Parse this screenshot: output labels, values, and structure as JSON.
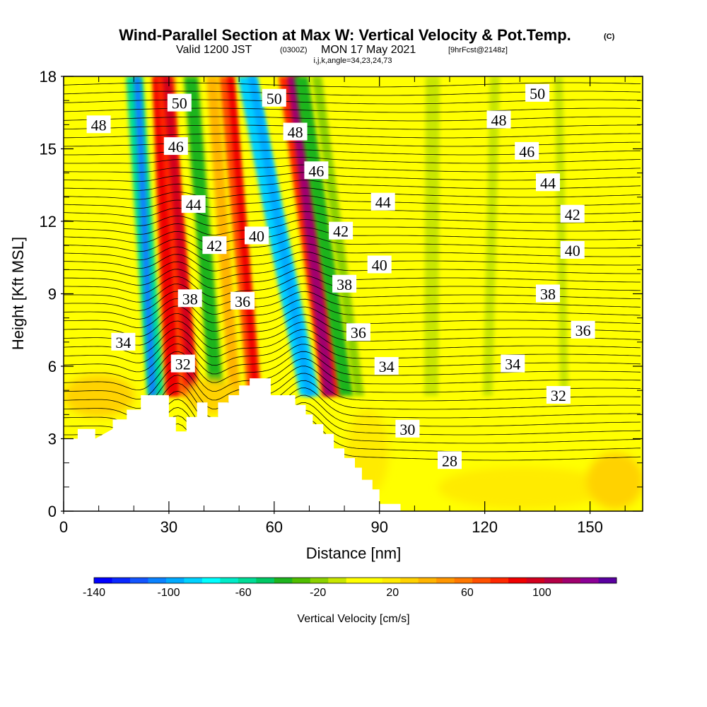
{
  "header": {
    "title": "Wind-Parallel Section at Max W: Vertical Velocity & Pot.Temp.",
    "title_mark": "(C)",
    "sub_a": "Valid 1200 JST",
    "sub_b": "(0300Z)",
    "sub_c": "MON 17 May 2021",
    "sub_d": "[9hrFcst@2148z]",
    "line3": "i,j,k,angle=34,23,24,73"
  },
  "chart_data": {
    "type": "heatmap",
    "xlabel": "Distance [nm]",
    "ylabel": "Height [Kft MSL]",
    "xlim": [
      0,
      165
    ],
    "ylim": [
      0,
      18
    ],
    "x_ticks": [
      "0",
      "30",
      "60",
      "90",
      "120",
      "150"
    ],
    "x_tick_values": [
      0,
      30,
      60,
      90,
      120,
      150
    ],
    "y_ticks": [
      "0",
      "3",
      "6",
      "9",
      "12",
      "15",
      "18"
    ],
    "y_tick_values": [
      0,
      3,
      6,
      9,
      12,
      15,
      18
    ],
    "colorbar": {
      "label": "Vertical Velocity [cm/s]",
      "tick_labels": [
        "-140",
        "-100",
        "-60",
        "-20",
        "20",
        "60",
        "100"
      ],
      "tick_values": [
        -140,
        -100,
        -60,
        -20,
        20,
        60,
        100
      ],
      "range": [
        -140,
        140
      ],
      "colors": [
        "#0000ff",
        "#0a28ff",
        "#1455ff",
        "#0a82ff",
        "#00aaff",
        "#00d2ff",
        "#00ffff",
        "#00ebc8",
        "#00dc96",
        "#00c864",
        "#1eb41e",
        "#50be00",
        "#8cd200",
        "#c8e600",
        "#ffff00",
        "#ffff00",
        "#ffeb00",
        "#ffd200",
        "#ffb400",
        "#ff9600",
        "#ff7800",
        "#ff5000",
        "#ff2800",
        "#f00000",
        "#d2001e",
        "#b40046",
        "#a0006e",
        "#8c0096",
        "#5a00a0"
      ]
    },
    "contour_field": "potential temperature",
    "contour_labels": [
      {
        "text": "50",
        "x": 33,
        "y": 16.9
      },
      {
        "text": "48",
        "x": 10,
        "y": 16.0
      },
      {
        "text": "46",
        "x": 32,
        "y": 15.1
      },
      {
        "text": "44",
        "x": 37,
        "y": 12.7
      },
      {
        "text": "42",
        "x": 43,
        "y": 11.0
      },
      {
        "text": "40",
        "x": 55,
        "y": 11.4
      },
      {
        "text": "38",
        "x": 36,
        "y": 8.8
      },
      {
        "text": "36",
        "x": 51,
        "y": 8.7
      },
      {
        "text": "34",
        "x": 17,
        "y": 7.0
      },
      {
        "text": "32",
        "x": 34,
        "y": 6.1
      },
      {
        "text": "50",
        "x": 60,
        "y": 17.1
      },
      {
        "text": "48",
        "x": 66,
        "y": 15.7
      },
      {
        "text": "46",
        "x": 72,
        "y": 14.1
      },
      {
        "text": "42",
        "x": 79,
        "y": 11.6
      },
      {
        "text": "38",
        "x": 80,
        "y": 9.4
      },
      {
        "text": "36",
        "x": 84,
        "y": 7.4
      },
      {
        "text": "44",
        "x": 91,
        "y": 12.8
      },
      {
        "text": "40",
        "x": 90,
        "y": 10.2
      },
      {
        "text": "34",
        "x": 92,
        "y": 6.0
      },
      {
        "text": "30",
        "x": 98,
        "y": 3.4
      },
      {
        "text": "28",
        "x": 110,
        "y": 2.1
      },
      {
        "text": "50",
        "x": 135,
        "y": 17.3
      },
      {
        "text": "48",
        "x": 124,
        "y": 16.2
      },
      {
        "text": "46",
        "x": 132,
        "y": 14.9
      },
      {
        "text": "44",
        "x": 138,
        "y": 13.6
      },
      {
        "text": "42",
        "x": 145,
        "y": 12.3
      },
      {
        "text": "40",
        "x": 145,
        "y": 10.8
      },
      {
        "text": "38",
        "x": 138,
        "y": 9.0
      },
      {
        "text": "36",
        "x": 148,
        "y": 7.5
      },
      {
        "text": "34",
        "x": 128,
        "y": 6.1
      },
      {
        "text": "32",
        "x": 141,
        "y": 4.8
      }
    ]
  },
  "colors": {
    "background_field": "#ffff00",
    "terrain": "#ffffff",
    "contour": "#000000"
  }
}
